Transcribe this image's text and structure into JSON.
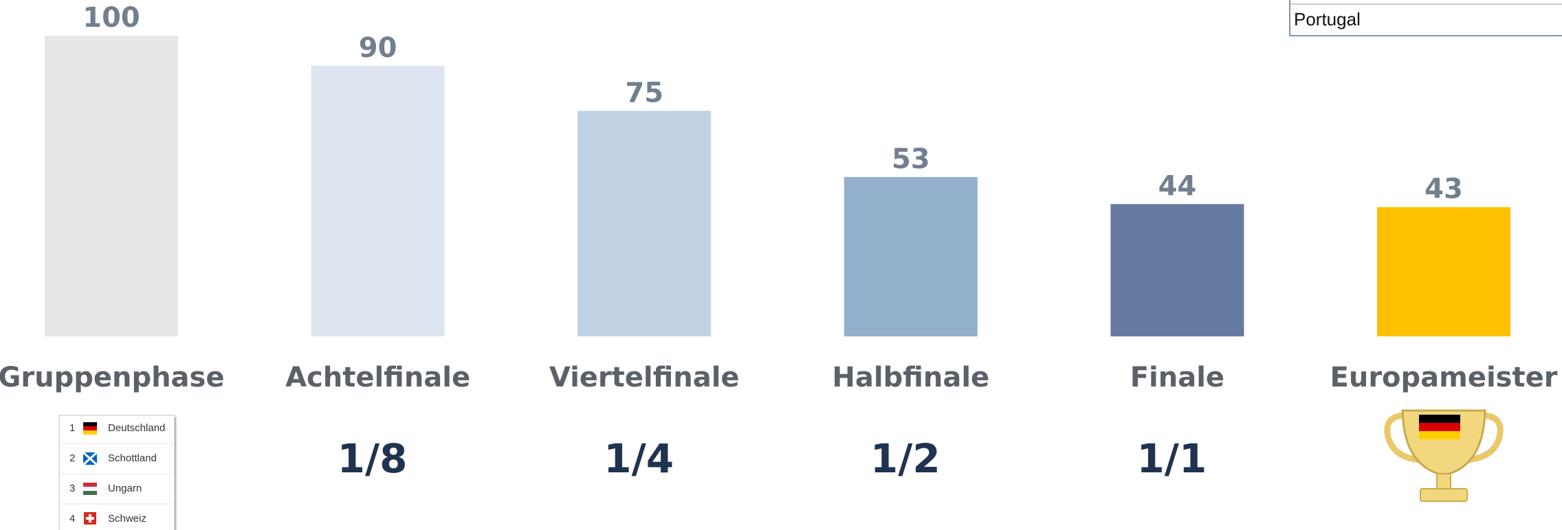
{
  "chart_data": {
    "type": "bar",
    "categories": [
      "Gruppenphase",
      "Achtelfinale",
      "Viertelfinale",
      "Halbfinale",
      "Finale",
      "Europameister"
    ],
    "values": [
      100,
      90,
      75,
      53,
      44,
      43
    ],
    "colors": [
      "#e7e7e7",
      "#dde5f1",
      "#c0d1e3",
      "#92afcc",
      "#66799f",
      "#ffc000"
    ],
    "ylim": [
      0,
      100
    ],
    "annotations": [
      "1/8",
      "1/4",
      "1/2",
      "1/1"
    ]
  },
  "group_table": {
    "rows": [
      [
        1,
        "Deutschland"
      ],
      [
        2,
        "Schottland"
      ],
      [
        3,
        "Ungarn"
      ],
      [
        4,
        "Schweiz"
      ]
    ]
  },
  "corner_table": {
    "rows": [
      "Portugal"
    ]
  }
}
